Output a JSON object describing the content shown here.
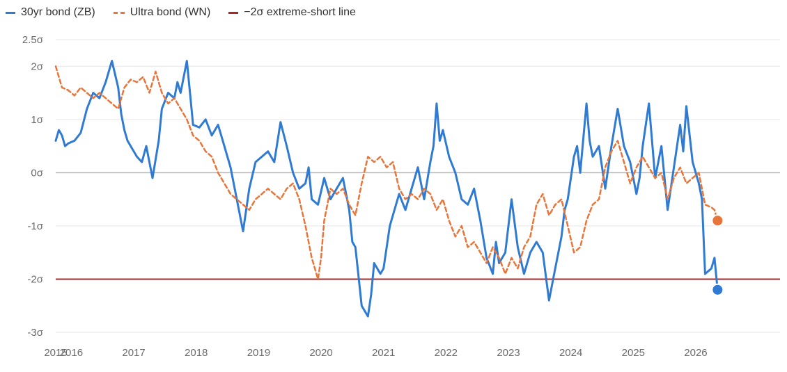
{
  "chart_data": {
    "type": "line",
    "title": "",
    "xlabel": "",
    "ylabel": "",
    "xlim": [
      2015.0,
      2026.6
    ],
    "ylim": [
      -3,
      2.5
    ],
    "y_ticks": [
      {
        "v": 2.5,
        "label": "2.5σ"
      },
      {
        "v": 2,
        "label": "2σ"
      },
      {
        "v": 1,
        "label": "1σ"
      },
      {
        "v": 0,
        "label": "0σ"
      },
      {
        "v": -1,
        "label": "-1σ"
      },
      {
        "v": -2,
        "label": "-2σ"
      },
      {
        "v": -3,
        "label": "-3σ"
      }
    ],
    "x_ticks": [
      {
        "v": 2015.0,
        "label": "2015"
      },
      {
        "v": 2015.25,
        "label": "2016"
      },
      {
        "v": 2016.25,
        "label": "2017"
      },
      {
        "v": 2017.25,
        "label": "2018"
      },
      {
        "v": 2018.25,
        "label": "2019"
      },
      {
        "v": 2019.25,
        "label": "2020"
      },
      {
        "v": 2020.25,
        "label": "2021"
      },
      {
        "v": 2021.25,
        "label": "2022"
      },
      {
        "v": 2022.25,
        "label": "2023"
      },
      {
        "v": 2023.25,
        "label": "2024"
      },
      {
        "v": 2024.25,
        "label": "2025"
      },
      {
        "v": 2025.25,
        "label": "2026"
      }
    ],
    "legend_position": "top-left",
    "grid": true,
    "reference_lines": [
      {
        "name": "−2σ extreme-short line",
        "y": -2,
        "color": "#A82828"
      },
      {
        "y": 0,
        "color": "#b5b5b5"
      }
    ],
    "series": [
      {
        "name": "30yr bond (ZB)",
        "color": "#2F7BD3",
        "style": "solid",
        "x": [
          2015.0,
          2015.05,
          2015.1,
          2015.15,
          2015.2,
          2015.3,
          2015.4,
          2015.5,
          2015.6,
          2015.7,
          2015.8,
          2015.9,
          2016.0,
          2016.05,
          2016.1,
          2016.15,
          2016.2,
          2016.3,
          2016.38,
          2016.45,
          2016.55,
          2016.65,
          2016.7,
          2016.8,
          2016.9,
          2016.95,
          2017.0,
          2017.1,
          2017.15,
          2017.2,
          2017.3,
          2017.4,
          2017.5,
          2017.6,
          2017.7,
          2017.8,
          2017.9,
          2018.0,
          2018.1,
          2018.2,
          2018.3,
          2018.4,
          2018.5,
          2018.6,
          2018.7,
          2018.8,
          2018.9,
          2019.0,
          2019.05,
          2019.1,
          2019.2,
          2019.3,
          2019.4,
          2019.5,
          2019.6,
          2019.7,
          2019.75,
          2019.8,
          2019.9,
          2020.0,
          2020.05,
          2020.1,
          2020.2,
          2020.25,
          2020.35,
          2020.45,
          2020.5,
          2020.6,
          2020.7,
          2020.8,
          2020.9,
          2021.0,
          2021.05,
          2021.1,
          2021.15,
          2021.2,
          2021.3,
          2021.4,
          2021.5,
          2021.6,
          2021.7,
          2021.8,
          2021.9,
          2022.0,
          2022.05,
          2022.1,
          2022.2,
          2022.3,
          2022.4,
          2022.5,
          2022.6,
          2022.7,
          2022.8,
          2022.9,
          2023.0,
          2023.1,
          2023.15,
          2023.2,
          2023.3,
          2023.35,
          2023.4,
          2023.5,
          2023.55,
          2023.6,
          2023.7,
          2023.8,
          2023.9,
          2024.0,
          2024.1,
          2024.2,
          2024.3,
          2024.35,
          2024.4,
          2024.5,
          2024.6,
          2024.7,
          2024.8,
          2024.9,
          2025.0,
          2025.05,
          2025.1,
          2025.2,
          2025.3,
          2025.35,
          2025.4,
          2025.5,
          2025.55,
          2025.6
        ],
        "y": [
          0.6,
          0.8,
          0.7,
          0.5,
          0.55,
          0.6,
          0.75,
          1.2,
          1.5,
          1.4,
          1.7,
          2.1,
          1.6,
          1.1,
          0.8,
          0.6,
          0.5,
          0.3,
          0.2,
          0.5,
          -0.1,
          0.6,
          1.2,
          1.5,
          1.4,
          1.7,
          1.5,
          2.1,
          1.5,
          0.9,
          0.85,
          1.0,
          0.7,
          0.9,
          0.5,
          0.1,
          -0.5,
          -1.1,
          -0.3,
          0.2,
          0.3,
          0.4,
          0.2,
          0.95,
          0.5,
          0.0,
          -0.3,
          -0.2,
          0.1,
          -0.5,
          -0.6,
          -0.1,
          -0.5,
          -0.3,
          -0.1,
          -0.7,
          -1.3,
          -1.4,
          -2.5,
          -2.7,
          -2.3,
          -1.7,
          -1.9,
          -1.8,
          -1.0,
          -0.6,
          -0.4,
          -0.7,
          -0.3,
          0.1,
          -0.5,
          0.2,
          0.5,
          1.3,
          0.6,
          0.8,
          0.3,
          0.0,
          -0.5,
          -0.6,
          -0.3,
          -0.9,
          -1.6,
          -1.9,
          -1.3,
          -1.7,
          -1.5,
          -0.5,
          -1.4,
          -1.9,
          -1.5,
          -1.3,
          -1.5,
          -2.4,
          -1.8,
          -1.2,
          -0.7,
          -0.5,
          0.3,
          0.5,
          0.0,
          1.3,
          0.6,
          0.3,
          0.5,
          -0.3,
          0.5,
          1.2,
          0.5,
          0.2,
          -0.4,
          -0.1,
          0.5,
          1.3,
          -0.1,
          0.5,
          -0.7,
          0.1,
          0.9,
          0.4,
          1.25,
          0.2,
          -0.2,
          -0.5,
          -1.9,
          -1.8,
          -1.6,
          -2.2
        ]
      },
      {
        "name": "Ultra bond (WN)",
        "color": "#E8753A",
        "style": "dashed",
        "x": [
          2015.0,
          2015.1,
          2015.2,
          2015.3,
          2015.4,
          2015.5,
          2015.6,
          2015.7,
          2015.8,
          2015.9,
          2016.0,
          2016.1,
          2016.2,
          2016.3,
          2016.4,
          2016.5,
          2016.6,
          2016.7,
          2016.8,
          2016.9,
          2017.0,
          2017.1,
          2017.2,
          2017.3,
          2017.4,
          2017.5,
          2017.6,
          2017.7,
          2017.8,
          2017.9,
          2018.0,
          2018.1,
          2018.2,
          2018.3,
          2018.4,
          2018.5,
          2018.6,
          2018.7,
          2018.8,
          2018.9,
          2019.0,
          2019.1,
          2019.2,
          2019.25,
          2019.3,
          2019.4,
          2019.5,
          2019.6,
          2019.7,
          2019.8,
          2019.9,
          2020.0,
          2020.1,
          2020.2,
          2020.3,
          2020.4,
          2020.5,
          2020.6,
          2020.7,
          2020.8,
          2020.9,
          2021.0,
          2021.1,
          2021.2,
          2021.3,
          2021.4,
          2021.5,
          2021.6,
          2021.7,
          2021.8,
          2021.9,
          2022.0,
          2022.1,
          2022.2,
          2022.3,
          2022.4,
          2022.5,
          2022.6,
          2022.7,
          2022.8,
          2022.9,
          2023.0,
          2023.1,
          2023.2,
          2023.3,
          2023.4,
          2023.5,
          2023.6,
          2023.7,
          2023.8,
          2023.9,
          2024.0,
          2024.1,
          2024.2,
          2024.3,
          2024.4,
          2024.5,
          2024.6,
          2024.7,
          2024.8,
          2024.9,
          2025.0,
          2025.1,
          2025.2,
          2025.3,
          2025.4,
          2025.5,
          2025.55,
          2025.6
        ],
        "y": [
          2.0,
          1.6,
          1.55,
          1.45,
          1.6,
          1.5,
          1.4,
          1.5,
          1.4,
          1.3,
          1.2,
          1.6,
          1.75,
          1.7,
          1.8,
          1.5,
          1.9,
          1.5,
          1.3,
          1.4,
          1.2,
          1.0,
          0.7,
          0.6,
          0.4,
          0.3,
          0.0,
          -0.2,
          -0.4,
          -0.5,
          -0.6,
          -0.7,
          -0.5,
          -0.4,
          -0.3,
          -0.4,
          -0.5,
          -0.3,
          -0.2,
          -0.5,
          -1.0,
          -1.6,
          -2.0,
          -1.6,
          -0.9,
          -0.3,
          -0.4,
          -0.3,
          -0.6,
          -0.8,
          -0.2,
          0.3,
          0.2,
          0.3,
          0.1,
          0.2,
          -0.3,
          -0.5,
          -0.4,
          -0.5,
          -0.3,
          -0.4,
          -0.7,
          -0.5,
          -0.9,
          -1.2,
          -1.0,
          -1.4,
          -1.3,
          -1.5,
          -1.7,
          -1.4,
          -1.6,
          -1.9,
          -1.6,
          -1.8,
          -1.4,
          -1.2,
          -0.6,
          -0.4,
          -0.8,
          -0.6,
          -0.5,
          -1.0,
          -1.5,
          -1.4,
          -0.9,
          -0.6,
          -0.5,
          0.1,
          0.4,
          0.6,
          0.2,
          -0.2,
          0.1,
          0.3,
          0.1,
          -0.1,
          0.0,
          -0.5,
          -0.1,
          0.1,
          -0.2,
          -0.1,
          0.0,
          -0.6,
          -0.65,
          -0.7,
          -0.9
        ]
      }
    ]
  },
  "legend": {
    "items": [
      {
        "label": "30yr bond (ZB)"
      },
      {
        "label": "Ultra bond (WN)"
      },
      {
        "label": "−2σ extreme-short line"
      }
    ]
  }
}
